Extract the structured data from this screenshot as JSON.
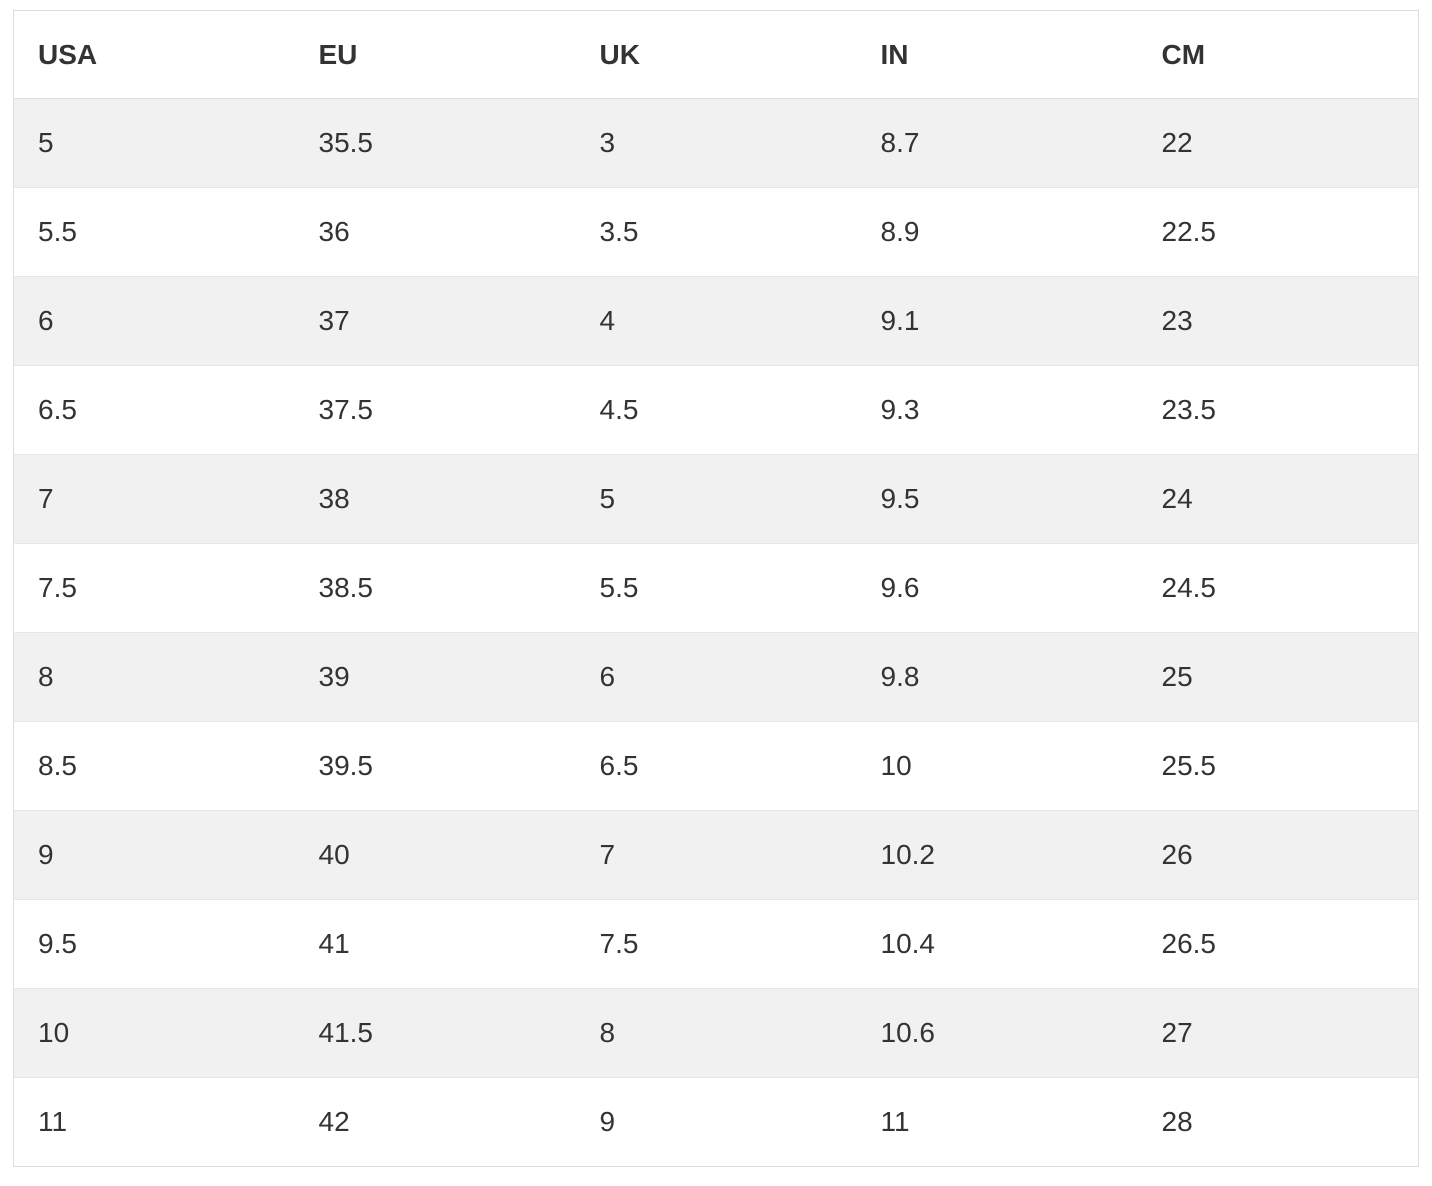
{
  "chart_data": {
    "type": "table",
    "columns": [
      "USA",
      "EU",
      "UK",
      "IN",
      "CM"
    ],
    "rows": [
      [
        5,
        35.5,
        3,
        8.7,
        22
      ],
      [
        5.5,
        36,
        3.5,
        8.9,
        22.5
      ],
      [
        6,
        37,
        4,
        9.1,
        23
      ],
      [
        6.5,
        37.5,
        4.5,
        9.3,
        23.5
      ],
      [
        7,
        38,
        5,
        9.5,
        24
      ],
      [
        7.5,
        38.5,
        5.5,
        9.6,
        24.5
      ],
      [
        8,
        39,
        6,
        9.8,
        25
      ],
      [
        8.5,
        39.5,
        6.5,
        10,
        25.5
      ],
      [
        9,
        40,
        7,
        10.2,
        26
      ],
      [
        9.5,
        41,
        7.5,
        10.4,
        26.5
      ],
      [
        10,
        41.5,
        8,
        10.6,
        27
      ],
      [
        11,
        42,
        9,
        11,
        28
      ]
    ],
    "layout": {
      "striped": true,
      "stripe_pattern": "first-data-row-shaded-then-alternating",
      "header_position": "top",
      "column_alignment": "left"
    }
  },
  "colors": {
    "stripe_row": "#f1f1f1",
    "plain_row": "#ffffff",
    "table_border": "#dddddd",
    "row_divider": "#e6e6e6",
    "text": "#333333",
    "header_text": "#333333",
    "page_background": "#ffffff"
  }
}
